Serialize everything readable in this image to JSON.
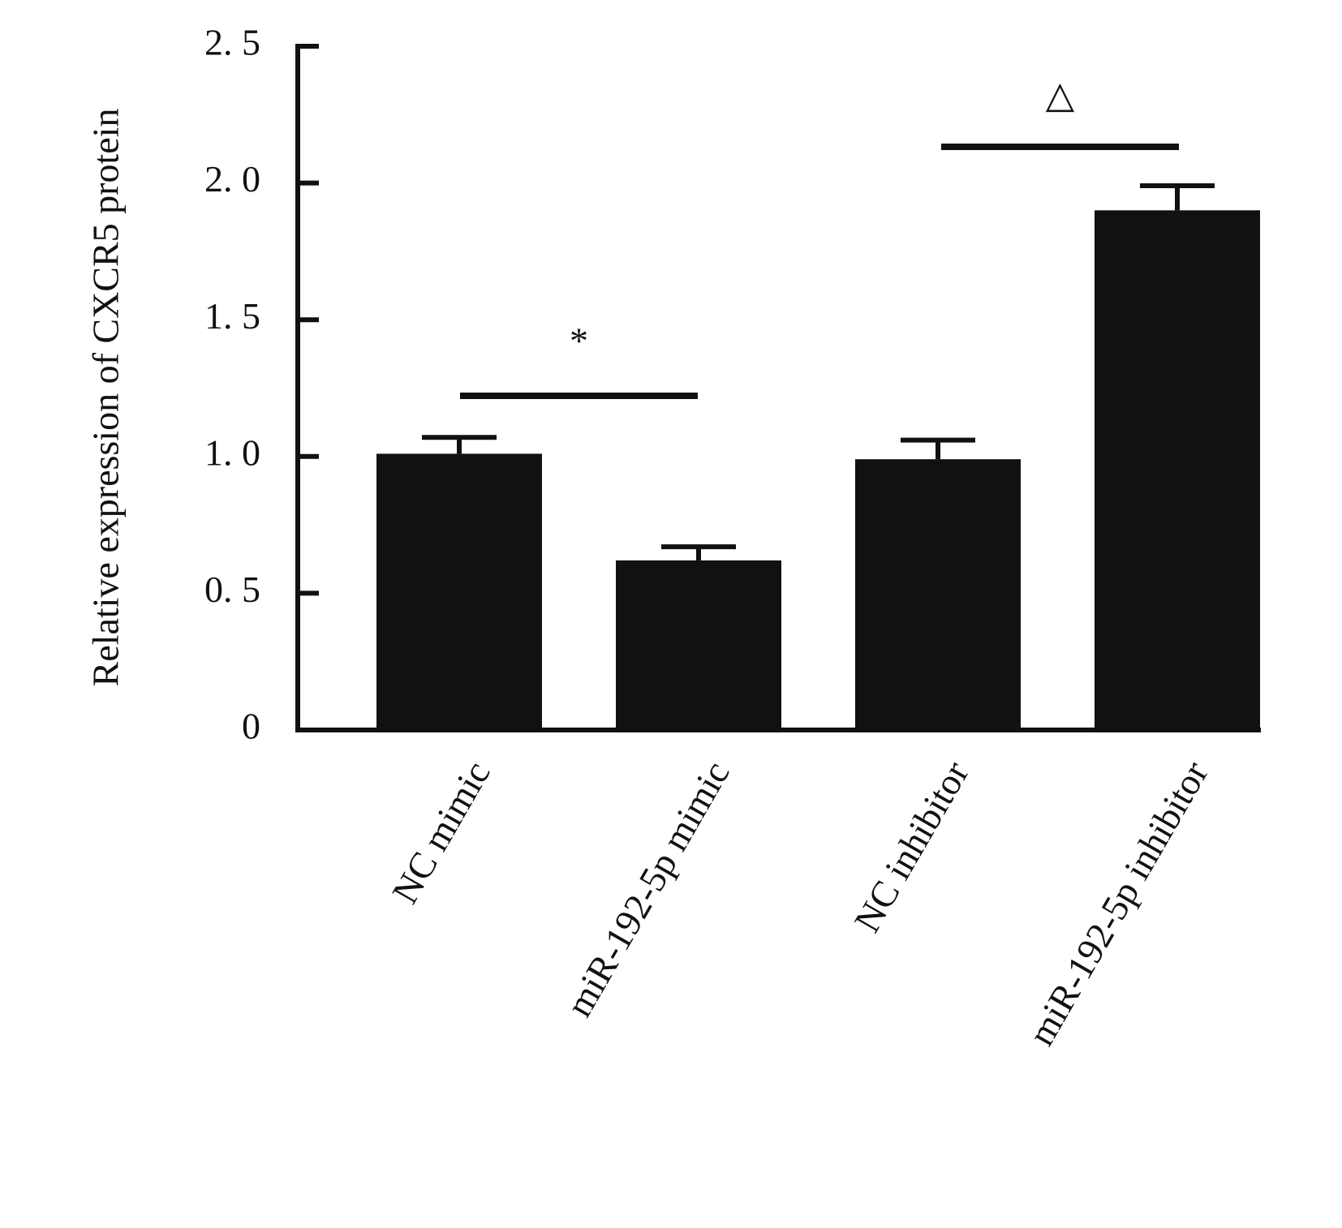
{
  "chart_data": {
    "type": "bar",
    "y_label": "Relative expression of CXCR5 protein",
    "categories": [
      "NC mimic",
      "miR-192-5p mimic",
      "NC inhibitor",
      "miR-192-5p inhibitor"
    ],
    "values": [
      1.01,
      0.62,
      0.99,
      1.9
    ],
    "errors": [
      0.06,
      0.05,
      0.07,
      0.09
    ],
    "color": "#111111",
    "ylim": [
      0,
      2.5
    ],
    "yticks": [
      0,
      {
        "value": 0.5,
        "label": "0. 5"
      },
      {
        "value": 1.0,
        "label": "1. 0"
      },
      {
        "value": 1.5,
        "label": "1. 5"
      },
      {
        "value": 2.0,
        "label": "2. 0"
      },
      {
        "value": 2.5,
        "label": "2. 5"
      }
    ],
    "annotations": [
      "*",
      "△"
    ]
  }
}
